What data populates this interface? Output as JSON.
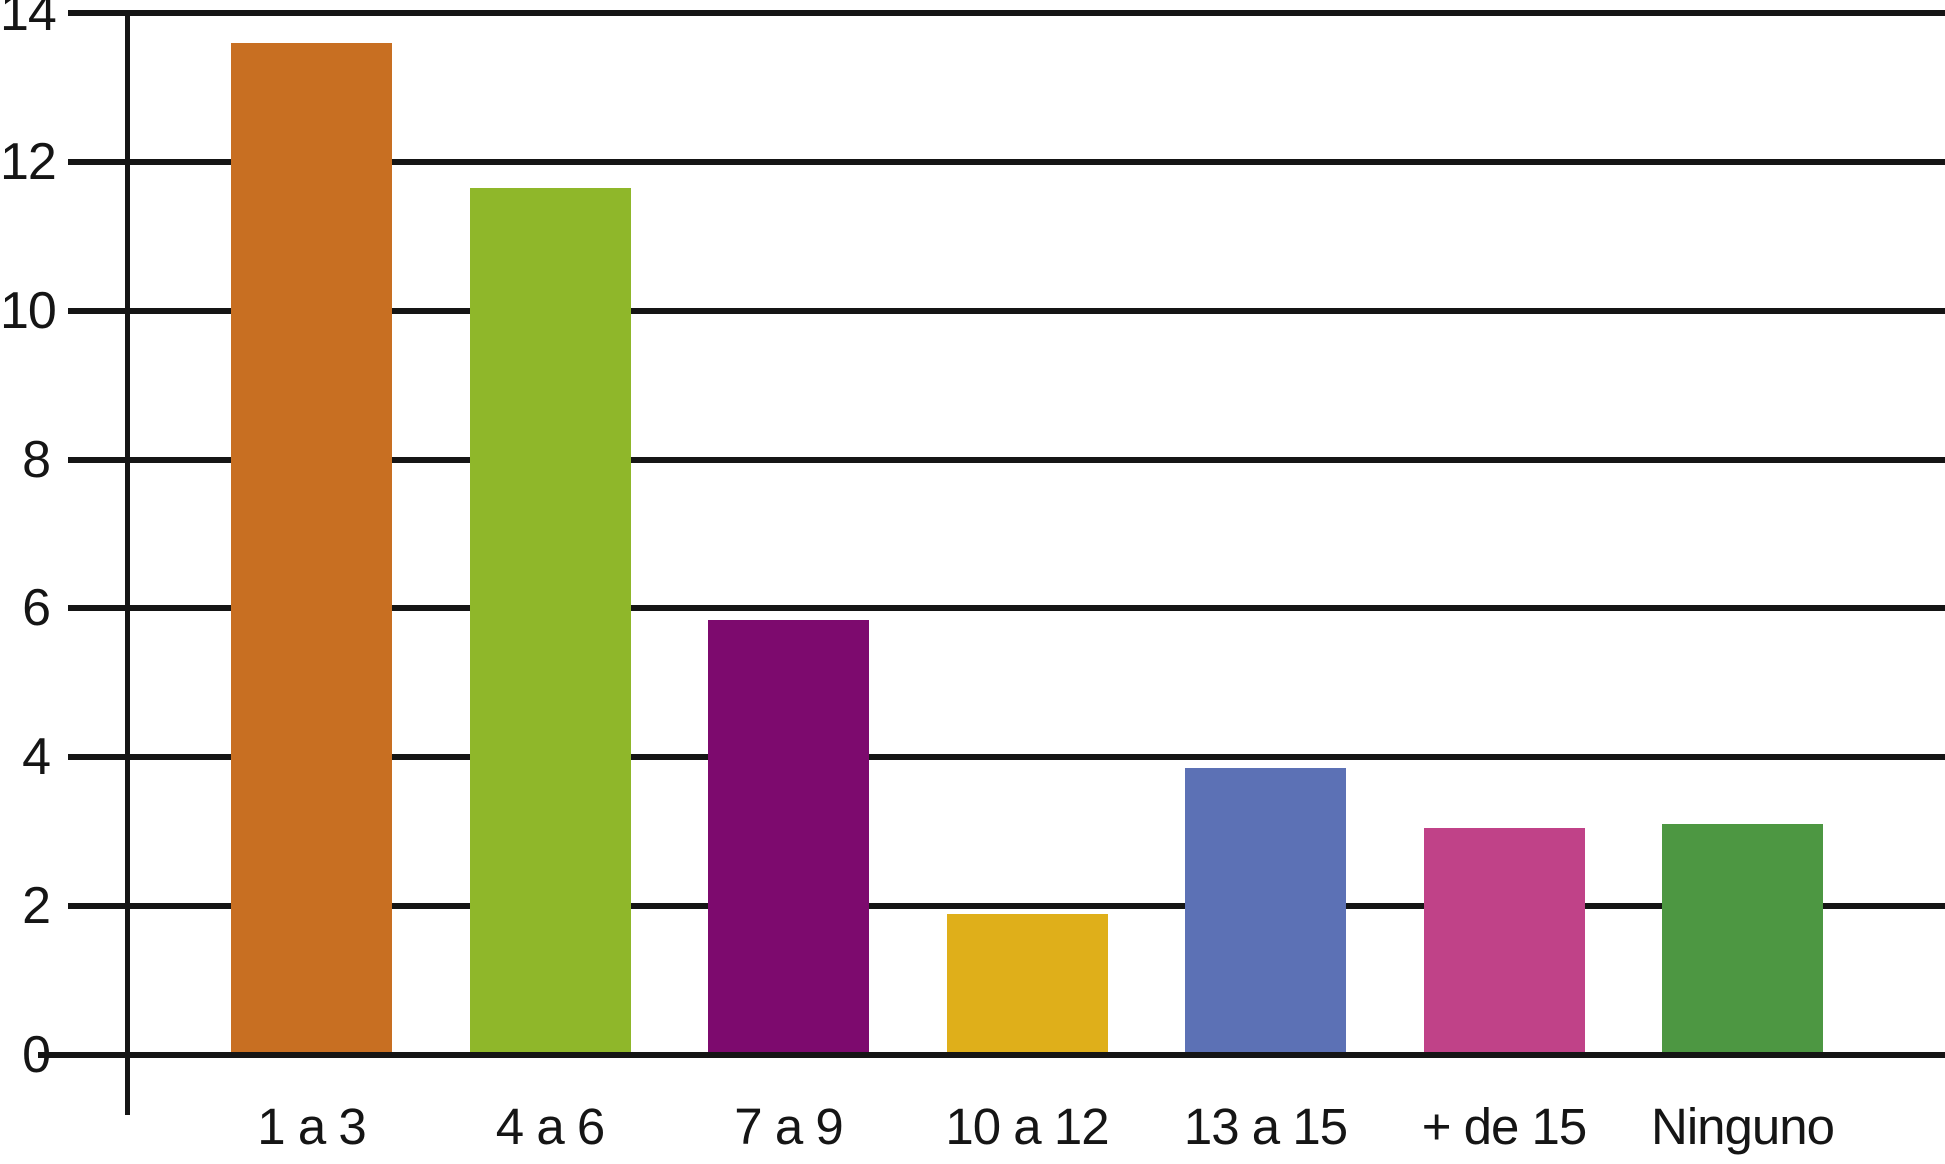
{
  "chart_data": {
    "type": "bar",
    "title": "",
    "xlabel": "",
    "ylabel": "",
    "categories": [
      "1 a 3",
      "4 a 6",
      "7 a 9",
      "10 a 12",
      "13 a 15",
      "+ de 15",
      "Ninguno"
    ],
    "values": [
      13.6,
      11.65,
      5.85,
      1.9,
      3.85,
      3.05,
      3.1
    ],
    "bar_colors": [
      "#c86f22",
      "#8fb72a",
      "#7d0a6e",
      "#dfaf1a",
      "#5c71b5",
      "#c04288",
      "#4d9742"
    ],
    "ylim": [
      0,
      14
    ],
    "ytick_step": 2,
    "ytick_labels": [
      "0",
      "2",
      "4",
      "6",
      "8",
      "10",
      "12",
      "14"
    ],
    "grid": "horizontal",
    "legend": "none",
    "axis_color": "#151515",
    "background": "#ffffff"
  }
}
